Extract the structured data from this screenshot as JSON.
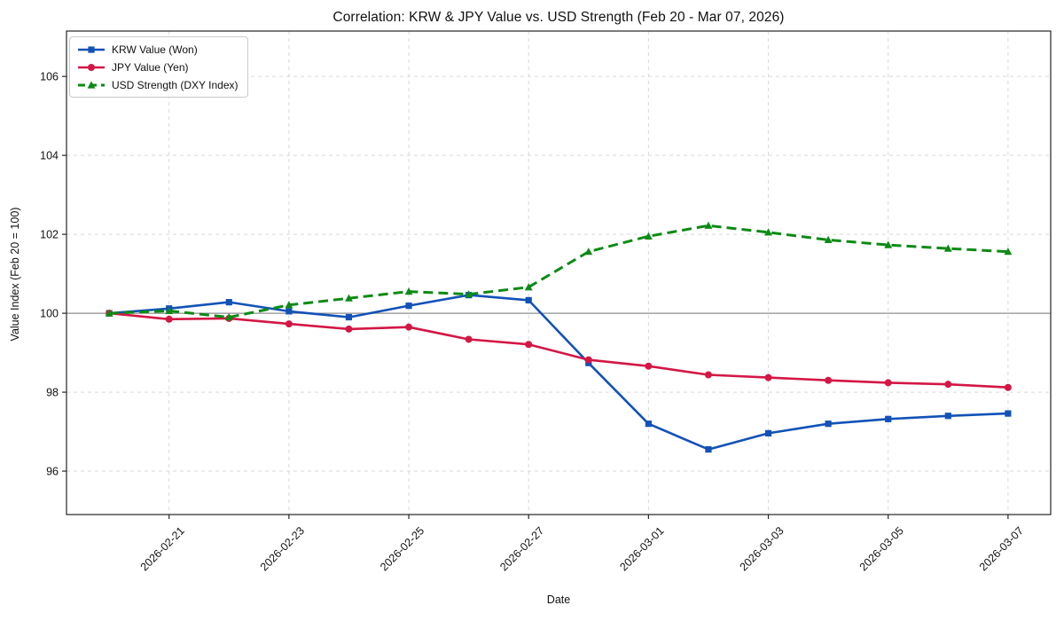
{
  "chart_data": {
    "type": "line",
    "title": "Correlation: KRW & JPY Value vs. USD Strength (Feb 20 - Mar 07, 2026)",
    "xlabel": "Date",
    "ylabel": "Value Index (Feb 20 = 100)",
    "x": [
      "2026-02-20",
      "2026-02-21",
      "2026-02-22",
      "2026-02-23",
      "2026-02-24",
      "2026-02-25",
      "2026-02-26",
      "2026-02-27",
      "2026-02-28",
      "2026-03-01",
      "2026-03-02",
      "2026-03-03",
      "2026-03-04",
      "2026-03-05",
      "2026-03-06",
      "2026-03-07"
    ],
    "xtick_labels": [
      "2026-02-21",
      "2026-02-23",
      "2026-02-25",
      "2026-02-27",
      "2026-03-01",
      "2026-03-03",
      "2026-03-05",
      "2026-03-07"
    ],
    "yticks": [
      96,
      98,
      100,
      102,
      104,
      106
    ],
    "ylim": [
      94.9,
      107.15
    ],
    "grid": true,
    "legend_position": "upper-left",
    "baseline": {
      "value": 100,
      "color": "#8f8f8f"
    },
    "series": [
      {
        "name": "KRW Value (Won)",
        "color": "#1252b7",
        "marker": "square",
        "linestyle": "solid",
        "values": [
          100.0,
          100.12,
          100.28,
          100.05,
          99.9,
          100.19,
          100.46,
          100.33,
          98.74,
          97.2,
          96.55,
          96.96,
          97.2,
          97.32,
          97.4,
          97.46
        ]
      },
      {
        "name": "JPY Value (Yen)",
        "color": "#d31745",
        "marker": "circle",
        "linestyle": "solid",
        "values": [
          100.0,
          99.85,
          99.87,
          99.73,
          99.6,
          99.65,
          99.34,
          99.21,
          98.82,
          98.66,
          98.44,
          98.37,
          98.3,
          98.24,
          98.2,
          98.12
        ]
      },
      {
        "name": "USD Strength (DXY Index)",
        "color": "#0c8a14",
        "marker": "triangle",
        "linestyle": "dashed",
        "values": [
          100.0,
          100.06,
          99.9,
          100.21,
          100.38,
          100.55,
          100.48,
          100.66,
          101.56,
          101.95,
          102.22,
          102.05,
          101.86,
          101.73,
          101.64,
          101.56
        ]
      }
    ]
  }
}
